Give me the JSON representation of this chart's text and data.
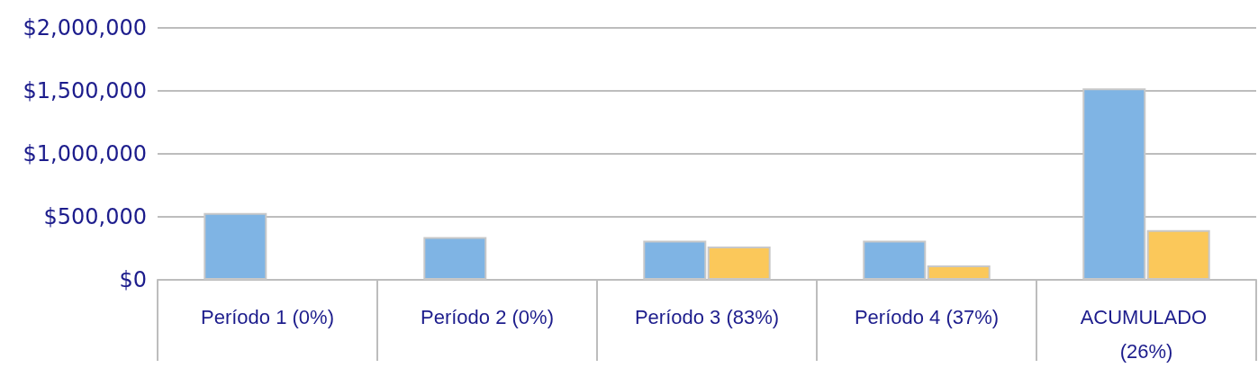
{
  "chart_data": {
    "type": "bar",
    "categories": [
      "Período 1 (0%)",
      "Período 2 (0%)",
      "Período 3 (83%)",
      "Período 4 (37%)",
      "ACUMULADO (26%)"
    ],
    "series": [
      {
        "color": "#7fb4e4",
        "values": [
          530000,
          340000,
          310000,
          310000,
          1520000
        ]
      },
      {
        "color": "#fbc85a",
        "values": [
          null,
          null,
          265000,
          115000,
          395000
        ]
      }
    ],
    "ylim": [
      0,
      2000000
    ],
    "yticks": [
      {
        "value": 0,
        "label": "$0"
      },
      {
        "value": 500000,
        "label": "$500,000"
      },
      {
        "value": 1000000,
        "label": "$1,000,000"
      },
      {
        "value": 1500000,
        "label": "$1,500,000"
      },
      {
        "value": 2000000,
        "label": "$2,000,000"
      }
    ],
    "grid": "y"
  }
}
